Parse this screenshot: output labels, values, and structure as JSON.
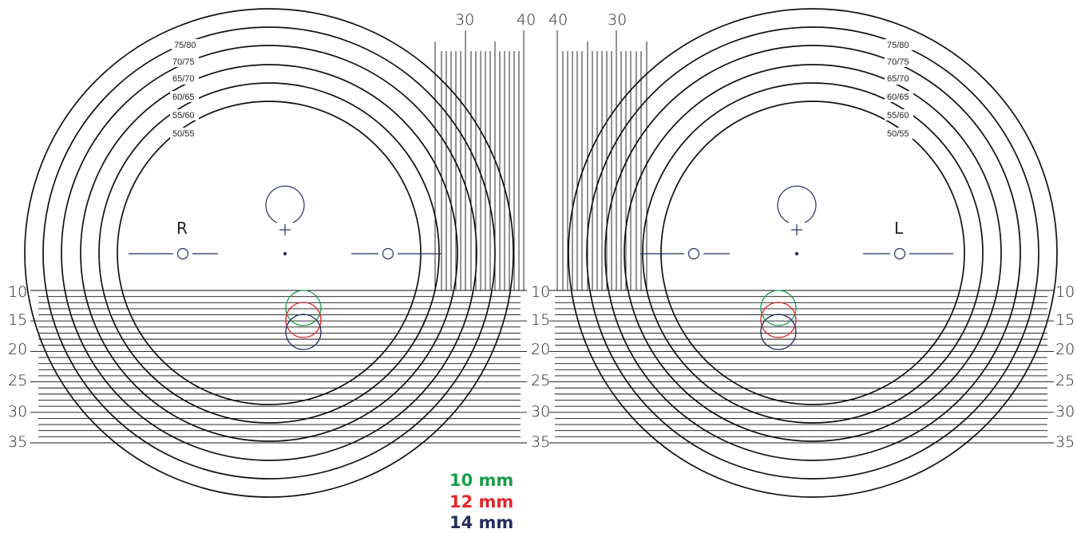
{
  "ring_labels": [
    "75/80",
    "70/75",
    "65/70",
    "60/65",
    "55/60",
    "50/55"
  ],
  "height_scale_labels": [
    "10",
    "15",
    "20",
    "25",
    "30",
    "35"
  ],
  "width_scale_labels": [
    "30",
    "40"
  ],
  "eyes": {
    "right_label": "R",
    "left_label": "L"
  },
  "legend": [
    {
      "label": "10 mm",
      "color": "#1a9c4a"
    },
    {
      "label": "12 mm",
      "color": "#e0262b"
    },
    {
      "label": "14 mm",
      "color": "#232d5e"
    }
  ],
  "colors": {
    "line": "#111111",
    "navy": "#232d5e"
  }
}
